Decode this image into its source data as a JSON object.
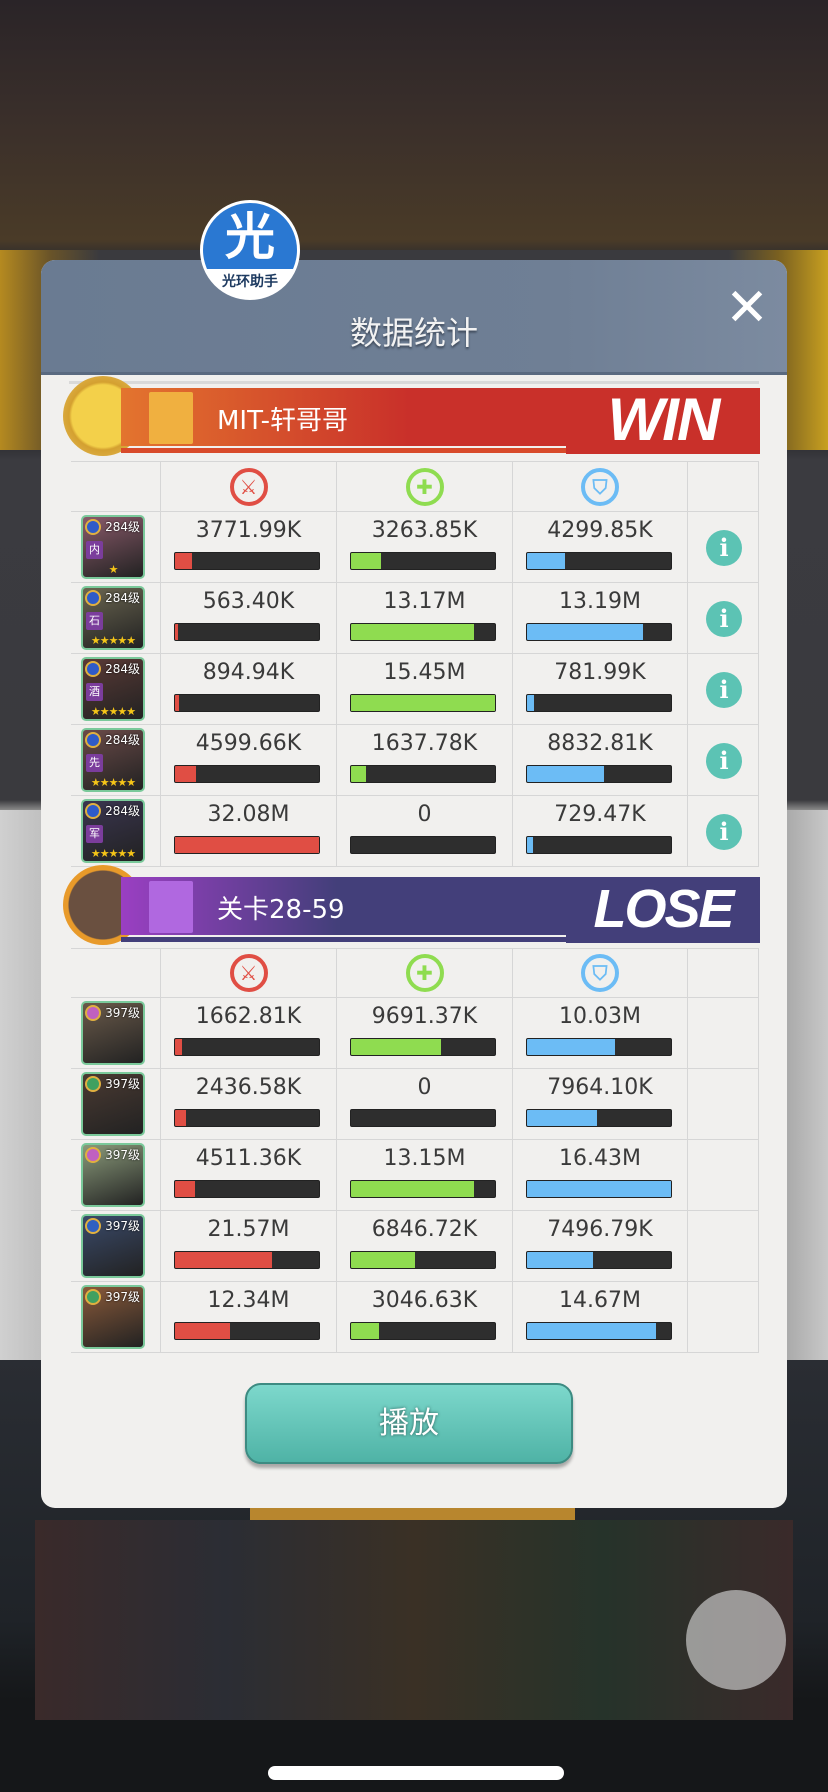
{
  "modal": {
    "title": "数据统计",
    "logo_text": "光",
    "logo_sub": "光环助手",
    "play_label": "播放"
  },
  "colors": {
    "damage": "#e04e44",
    "heal": "#8fdc50",
    "tank": "#6cbcf5",
    "win": "#c9302a",
    "lose": "#433f7a"
  },
  "teams": [
    {
      "name": "MIT-轩哥哥",
      "result": "WIN",
      "show_info": true,
      "heroes": [
        {
          "level": "284级",
          "tag": "内",
          "stars": 1,
          "damage": "3771.99K",
          "damage_pct": 11.8,
          "heal": "3263.85K",
          "heal_pct": 21.1,
          "tank": "4299.85K",
          "tank_pct": 26.2,
          "color": "#8a5a6a"
        },
        {
          "level": "284级",
          "tag": "石",
          "stars": 5,
          "damage": "563.40K",
          "damage_pct": 1.8,
          "heal": "13.17M",
          "heal_pct": 85.2,
          "tank": "13.19M",
          "tank_pct": 80.3,
          "color": "#6a6550"
        },
        {
          "level": "284级",
          "tag": "酒",
          "stars": 5,
          "damage": "894.94K",
          "damage_pct": 2.8,
          "heal": "15.45M",
          "heal_pct": 100,
          "tank": "781.99K",
          "tank_pct": 4.8,
          "color": "#5a3a36"
        },
        {
          "level": "284级",
          "tag": "先",
          "stars": 5,
          "damage": "4599.66K",
          "damage_pct": 14.3,
          "heal": "1637.78K",
          "heal_pct": 10.6,
          "tank": "8832.81K",
          "tank_pct": 53.8,
          "color": "#6a4a48"
        },
        {
          "level": "284级",
          "tag": "军",
          "stars": 5,
          "damage": "32.08M",
          "damage_pct": 100,
          "heal": "0",
          "heal_pct": 0,
          "tank": "729.47K",
          "tank_pct": 4.4,
          "color": "#3a3550"
        }
      ]
    },
    {
      "name": "关卡28-59",
      "result": "LOSE",
      "show_info": false,
      "heroes": [
        {
          "level": "397级",
          "damage": "1662.81K",
          "damage_pct": 5.2,
          "heal": "9691.37K",
          "heal_pct": 62.7,
          "tank": "10.03M",
          "tank_pct": 61.0,
          "color": "#6a5a4a"
        },
        {
          "level": "397级",
          "damage": "2436.58K",
          "damage_pct": 7.6,
          "heal": "0",
          "heal_pct": 0,
          "tank": "7964.10K",
          "tank_pct": 48.5,
          "color": "#4a3a32"
        },
        {
          "level": "397级",
          "damage": "4511.36K",
          "damage_pct": 14.1,
          "heal": "13.15M",
          "heal_pct": 85.1,
          "tank": "16.43M",
          "tank_pct": 100,
          "color": "#8a9a7a"
        },
        {
          "level": "397级",
          "damage": "21.57M",
          "damage_pct": 67.2,
          "heal": "6846.72K",
          "heal_pct": 44.3,
          "tank": "7496.79K",
          "tank_pct": 45.6,
          "color": "#3a4a6a"
        },
        {
          "level": "397级",
          "damage": "12.34M",
          "damage_pct": 38.5,
          "heal": "3046.63K",
          "heal_pct": 19.7,
          "tank": "14.67M",
          "tank_pct": 89.3,
          "color": "#8a5a3a"
        }
      ]
    }
  ],
  "icons": {
    "damage": "sword-icon",
    "heal": "plus-icon",
    "tank": "shield-icon",
    "info": "info-icon",
    "close": "close-icon"
  }
}
